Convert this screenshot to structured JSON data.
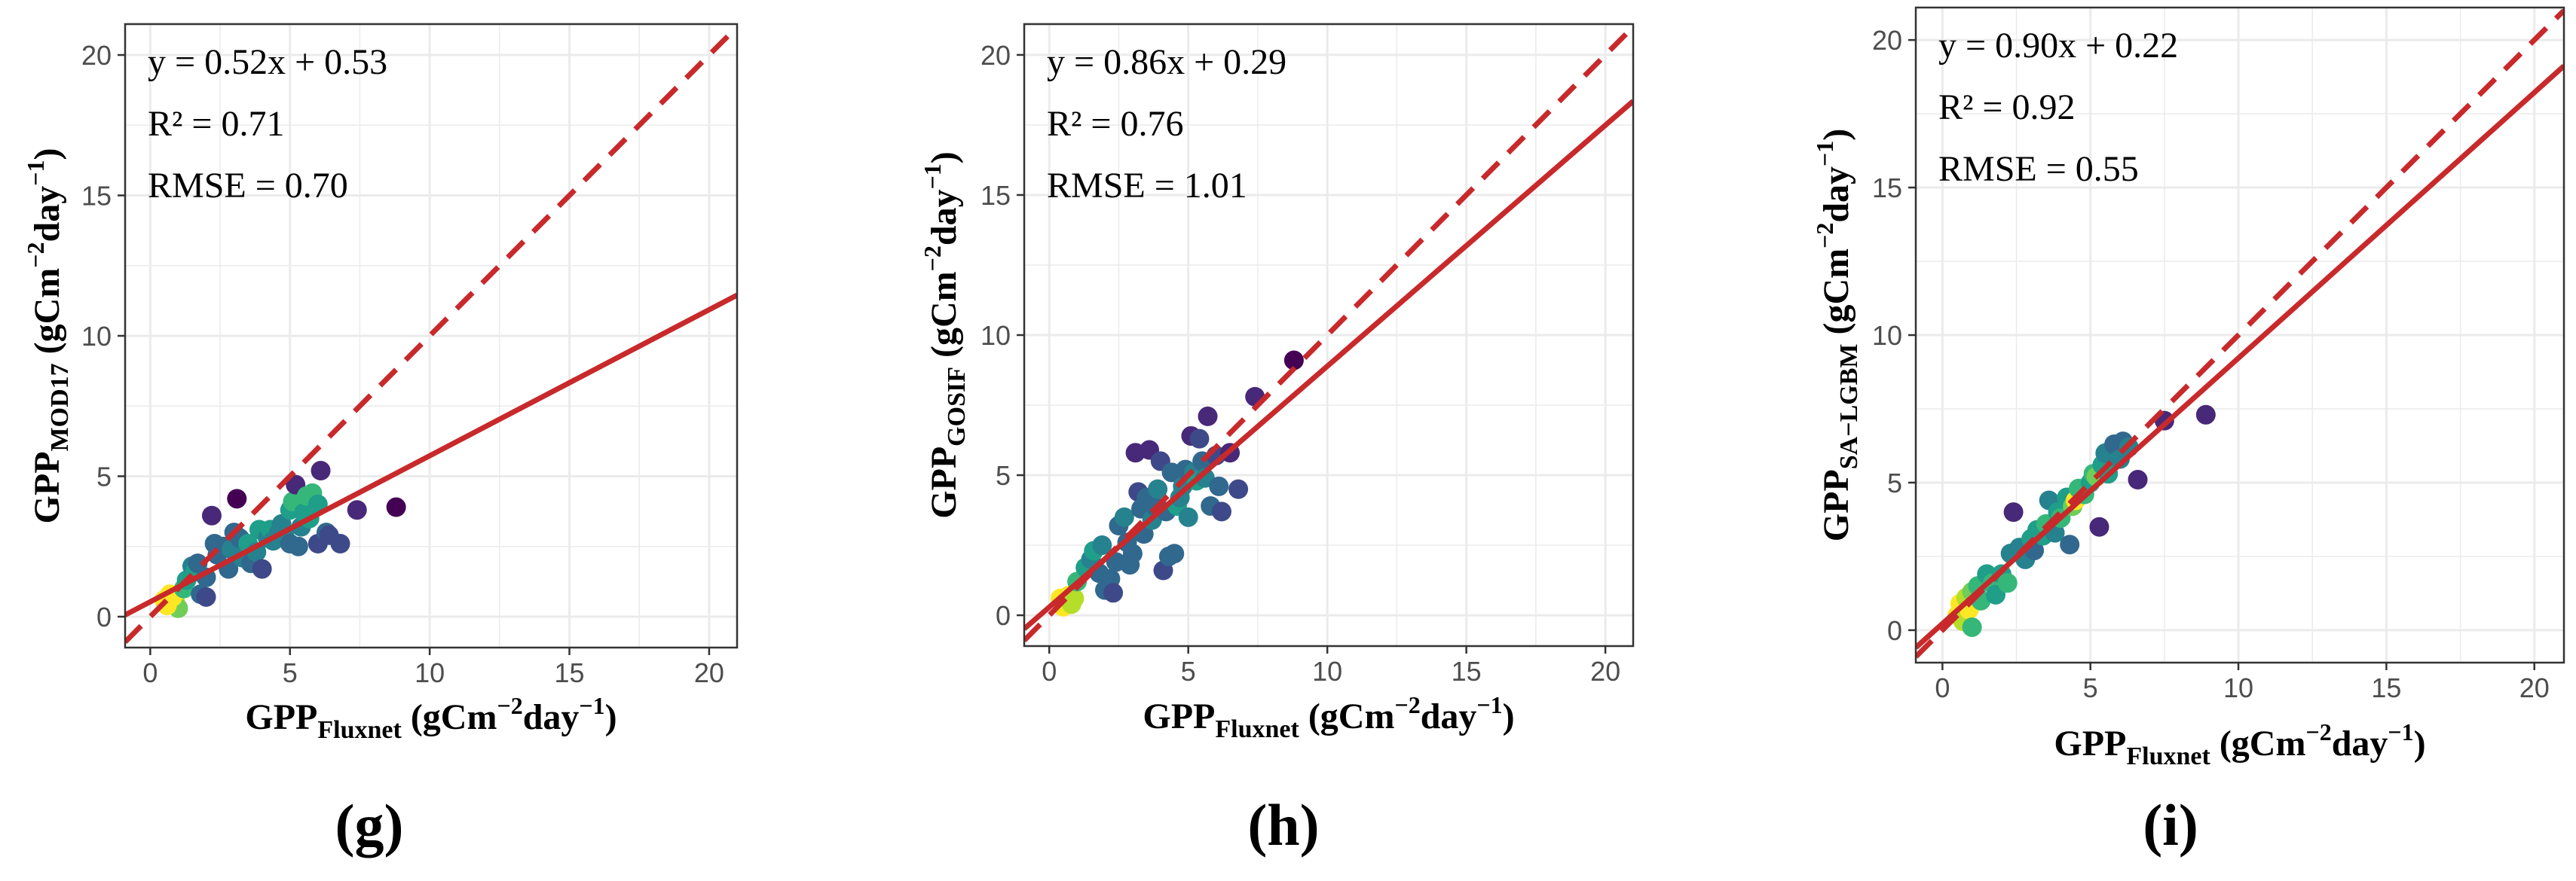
{
  "colors": {
    "fit_line": "#c8292b",
    "one_to_one_line": "#c8292b",
    "grid": "#ebebeb",
    "panel_border": "#333333",
    "point_palette": [
      "#440154",
      "#482878",
      "#3e4989",
      "#31688e",
      "#26828e",
      "#1f9e89",
      "#35b779",
      "#6ece58",
      "#b5de2b",
      "#fde725"
    ]
  },
  "chart_data": [
    {
      "type": "scatter",
      "panel_label": "(g)",
      "stats": {
        "equation": "y = 0.52x + 0.53",
        "r2": "R² = 0.71",
        "rmse": "RMSE = 0.70"
      },
      "xlabel": {
        "main": "GPP",
        "sub": "Fluxnet",
        "unit_a": " (gCm",
        "exp_a": "−2",
        "unit_b": "day",
        "exp_b": "−1",
        "unit_c": ")"
      },
      "ylabel": {
        "main": "GPP",
        "sub": "MOD17",
        "unit_a": " (gCm",
        "exp_a": "−2",
        "unit_b": "day",
        "exp_b": "−1",
        "unit_c": ")"
      },
      "xlim": [
        -0.9,
        21
      ],
      "ylim": [
        -1.1,
        21.1
      ],
      "xticks": [
        0,
        5,
        10,
        15,
        20
      ],
      "yticks": [
        0,
        5,
        10,
        15,
        20
      ],
      "fit": {
        "slope": 0.52,
        "intercept": 0.53
      },
      "one_to_one": true,
      "points": [
        [
          0.5,
          0.6,
          9
        ],
        [
          0.7,
          0.8,
          9
        ],
        [
          0.9,
          0.5,
          8
        ],
        [
          1.0,
          0.3,
          7
        ],
        [
          0.6,
          0.4,
          9
        ],
        [
          0.8,
          0.7,
          9
        ],
        [
          1.2,
          1.0,
          6
        ],
        [
          1.3,
          1.3,
          5
        ],
        [
          1.5,
          1.8,
          4
        ],
        [
          1.6,
          1.6,
          5
        ],
        [
          1.7,
          1.9,
          3
        ],
        [
          1.8,
          0.8,
          3
        ],
        [
          2.0,
          1.4,
          3
        ],
        [
          2.0,
          0.7,
          2
        ],
        [
          2.2,
          3.6,
          1
        ],
        [
          2.3,
          2.6,
          3
        ],
        [
          2.4,
          2.2,
          3
        ],
        [
          2.6,
          2.5,
          3
        ],
        [
          2.8,
          1.7,
          3
        ],
        [
          2.9,
          2.4,
          4
        ],
        [
          3.0,
          3.0,
          3
        ],
        [
          3.1,
          4.2,
          0
        ],
        [
          3.2,
          2.8,
          3
        ],
        [
          3.3,
          2.1,
          4
        ],
        [
          3.5,
          2.6,
          5
        ],
        [
          3.6,
          1.9,
          3
        ],
        [
          3.8,
          2.3,
          4
        ],
        [
          3.9,
          3.1,
          5
        ],
        [
          4.0,
          1.7,
          2
        ],
        [
          4.2,
          2.8,
          4
        ],
        [
          4.3,
          3.1,
          5
        ],
        [
          4.4,
          2.7,
          4
        ],
        [
          4.6,
          3.0,
          4
        ],
        [
          4.7,
          3.3,
          4
        ],
        [
          4.8,
          2.9,
          4
        ],
        [
          5.0,
          2.6,
          3
        ],
        [
          5.0,
          3.8,
          5
        ],
        [
          5.1,
          4.1,
          6
        ],
        [
          5.2,
          4.7,
          1
        ],
        [
          5.3,
          2.5,
          3
        ],
        [
          5.4,
          3.2,
          4
        ],
        [
          5.5,
          3.7,
          5
        ],
        [
          5.6,
          4.3,
          6
        ],
        [
          5.7,
          3.5,
          5
        ],
        [
          5.8,
          4.4,
          6
        ],
        [
          6.0,
          4.0,
          5
        ],
        [
          6.0,
          2.6,
          2
        ],
        [
          6.1,
          5.2,
          1
        ],
        [
          6.3,
          3.0,
          3
        ],
        [
          6.4,
          2.9,
          2
        ],
        [
          6.8,
          2.6,
          2
        ],
        [
          7.4,
          3.8,
          1
        ],
        [
          8.8,
          3.9,
          0
        ]
      ]
    },
    {
      "type": "scatter",
      "panel_label": "(h)",
      "stats": {
        "equation": "y = 0.86x + 0.29",
        "r2": "R² = 0.76",
        "rmse": "RMSE = 1.01"
      },
      "xlabel": {
        "main": "GPP",
        "sub": "Fluxnet",
        "unit_a": " (gCm",
        "exp_a": "−2",
        "unit_b": "day",
        "exp_b": "−1",
        "unit_c": ")"
      },
      "ylabel": {
        "main": "GPP",
        "sub": "GOSIF",
        "unit_a": " (gCm",
        "exp_a": "−2",
        "unit_b": "day",
        "exp_b": "−1",
        "unit_c": ")"
      },
      "xlim": [
        -0.9,
        21
      ],
      "ylim": [
        -1.1,
        21.1
      ],
      "xticks": [
        0,
        5,
        10,
        15,
        20
      ],
      "yticks": [
        0,
        5,
        10,
        15,
        20
      ],
      "fit": {
        "slope": 0.86,
        "intercept": 0.29
      },
      "one_to_one": true,
      "points": [
        [
          0.4,
          0.6,
          9
        ],
        [
          0.5,
          0.3,
          9
        ],
        [
          0.7,
          0.7,
          9
        ],
        [
          0.8,
          0.4,
          8
        ],
        [
          0.9,
          0.6,
          8
        ],
        [
          1.0,
          1.2,
          6
        ],
        [
          1.3,
          1.7,
          5
        ],
        [
          1.5,
          2.0,
          4
        ],
        [
          1.6,
          2.3,
          5
        ],
        [
          1.8,
          1.5,
          3
        ],
        [
          1.9,
          2.5,
          4
        ],
        [
          2.0,
          0.9,
          3
        ],
        [
          2.2,
          1.3,
          3
        ],
        [
          2.3,
          0.8,
          2
        ],
        [
          2.4,
          1.9,
          3
        ],
        [
          2.5,
          3.2,
          3
        ],
        [
          2.7,
          3.5,
          4
        ],
        [
          2.8,
          2.6,
          3
        ],
        [
          2.9,
          1.8,
          3
        ],
        [
          3.0,
          2.2,
          3
        ],
        [
          3.1,
          5.8,
          1
        ],
        [
          3.2,
          4.4,
          2
        ],
        [
          3.3,
          3.8,
          3
        ],
        [
          3.4,
          2.9,
          3
        ],
        [
          3.5,
          4.2,
          3
        ],
        [
          3.6,
          5.9,
          1
        ],
        [
          3.7,
          3.4,
          4
        ],
        [
          3.8,
          3.9,
          3
        ],
        [
          3.9,
          4.5,
          4
        ],
        [
          4.0,
          5.5,
          2
        ],
        [
          4.1,
          1.6,
          2
        ],
        [
          4.2,
          3.7,
          3
        ],
        [
          4.3,
          2.1,
          3
        ],
        [
          4.4,
          5.1,
          3
        ],
        [
          4.5,
          2.2,
          3
        ],
        [
          4.6,
          3.9,
          5
        ],
        [
          4.7,
          4.2,
          4
        ],
        [
          4.8,
          4.6,
          4
        ],
        [
          4.9,
          5.2,
          3
        ],
        [
          5.0,
          3.5,
          4
        ],
        [
          5.1,
          6.4,
          1
        ],
        [
          5.2,
          5.1,
          4
        ],
        [
          5.3,
          4.8,
          5
        ],
        [
          5.4,
          6.3,
          2
        ],
        [
          5.5,
          5.5,
          3
        ],
        [
          5.6,
          4.9,
          4
        ],
        [
          5.7,
          7.1,
          1
        ],
        [
          5.8,
          3.9,
          3
        ],
        [
          6.0,
          5.7,
          2
        ],
        [
          6.1,
          4.6,
          3
        ],
        [
          6.2,
          3.7,
          2
        ],
        [
          6.5,
          5.8,
          1
        ],
        [
          6.8,
          4.5,
          2
        ],
        [
          7.4,
          7.8,
          1
        ],
        [
          8.8,
          9.1,
          0
        ]
      ]
    },
    {
      "type": "scatter",
      "panel_label": "(i)",
      "stats": {
        "equation": "y = 0.90x + 0.22",
        "r2": "R² = 0.92",
        "rmse": "RMSE = 0.55"
      },
      "xlabel": {
        "main": "GPP",
        "sub": "Fluxnet",
        "unit_a": " (gCm",
        "exp_a": "−2",
        "unit_b": "day",
        "exp_b": "−1",
        "unit_c": ")"
      },
      "ylabel": {
        "main": "GPP",
        "sub": "SA−LGBM",
        "unit_a": " (gCm",
        "exp_a": "−2",
        "unit_b": "day",
        "exp_b": "−1",
        "unit_c": ")"
      },
      "xlim": [
        -0.9,
        21
      ],
      "ylim": [
        -1.1,
        21.1
      ],
      "xticks": [
        0,
        5,
        10,
        15,
        20
      ],
      "yticks": [
        0,
        5,
        10,
        15,
        20
      ],
      "fit": {
        "slope": 0.9,
        "intercept": 0.22
      },
      "one_to_one": true,
      "points": [
        [
          0.5,
          0.5,
          9
        ],
        [
          0.6,
          0.9,
          9
        ],
        [
          0.7,
          0.3,
          8
        ],
        [
          0.8,
          1.1,
          8
        ],
        [
          0.9,
          0.7,
          9
        ],
        [
          1.0,
          1.3,
          7
        ],
        [
          1.0,
          0.1,
          6
        ],
        [
          1.2,
          1.5,
          6
        ],
        [
          1.3,
          1.0,
          6
        ],
        [
          1.5,
          1.9,
          5
        ],
        [
          1.7,
          1.6,
          6
        ],
        [
          1.8,
          1.2,
          5
        ],
        [
          2.0,
          1.9,
          5
        ],
        [
          2.2,
          1.6,
          6
        ],
        [
          2.3,
          2.6,
          4
        ],
        [
          2.4,
          4.0,
          1
        ],
        [
          2.6,
          2.8,
          4
        ],
        [
          2.8,
          2.4,
          4
        ],
        [
          3.0,
          3.1,
          5
        ],
        [
          3.1,
          2.7,
          3
        ],
        [
          3.2,
          3.4,
          5
        ],
        [
          3.4,
          3.2,
          5
        ],
        [
          3.5,
          3.6,
          6
        ],
        [
          3.6,
          4.4,
          4
        ],
        [
          3.8,
          3.3,
          4
        ],
        [
          3.9,
          4.0,
          5
        ],
        [
          4.0,
          3.8,
          6
        ],
        [
          4.2,
          4.5,
          5
        ],
        [
          4.3,
          2.9,
          3
        ],
        [
          4.4,
          4.2,
          7
        ],
        [
          4.5,
          4.4,
          9
        ],
        [
          4.6,
          4.8,
          6
        ],
        [
          4.8,
          4.6,
          6
        ],
        [
          5.0,
          5.0,
          5
        ],
        [
          5.1,
          5.3,
          6
        ],
        [
          5.2,
          5.2,
          7
        ],
        [
          5.3,
          3.5,
          1
        ],
        [
          5.4,
          5.6,
          5
        ],
        [
          5.5,
          6.0,
          4
        ],
        [
          5.6,
          5.3,
          5
        ],
        [
          5.8,
          6.3,
          3
        ],
        [
          6.0,
          5.8,
          4
        ],
        [
          6.1,
          6.4,
          3
        ],
        [
          6.3,
          6.2,
          4
        ],
        [
          6.6,
          5.1,
          1
        ],
        [
          7.5,
          7.1,
          1
        ],
        [
          8.9,
          7.3,
          1
        ]
      ]
    }
  ]
}
